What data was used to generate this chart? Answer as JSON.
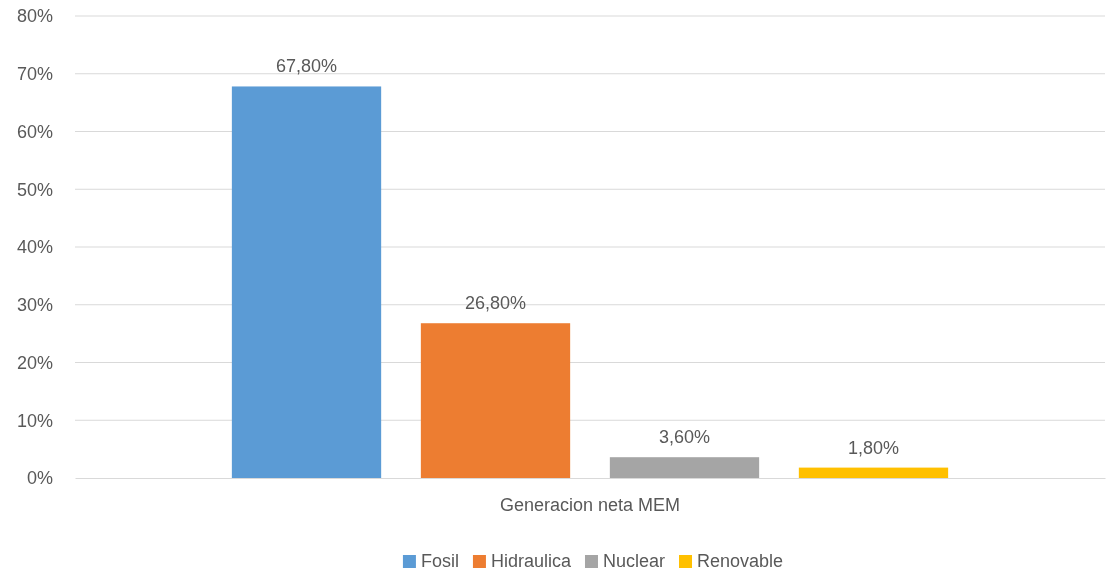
{
  "chart_data": {
    "type": "bar",
    "categories": [
      "Generacion neta MEM"
    ],
    "series": [
      {
        "name": "Fosil",
        "color": "#5b9bd5",
        "values": [
          67.8
        ],
        "value_labels": [
          "67,80%"
        ]
      },
      {
        "name": "Hidraulica",
        "color": "#ed7d31",
        "values": [
          26.8
        ],
        "value_labels": [
          "26,80%"
        ]
      },
      {
        "name": "Nuclear",
        "color": "#a5a5a5",
        "values": [
          3.6
        ],
        "value_labels": [
          "3,60%"
        ]
      },
      {
        "name": "Renovable",
        "color": "#ffc000",
        "values": [
          1.8
        ],
        "value_labels": [
          "1,80%"
        ]
      }
    ],
    "ylim": [
      0,
      80
    ],
    "yticks": [
      {
        "value": 0,
        "label": "0%"
      },
      {
        "value": 10,
        "label": "10%"
      },
      {
        "value": 20,
        "label": "20%"
      },
      {
        "value": 30,
        "label": "30%"
      },
      {
        "value": 40,
        "label": "40%"
      },
      {
        "value": 50,
        "label": "50%"
      },
      {
        "value": 60,
        "label": "60%"
      },
      {
        "value": 70,
        "label": "70%"
      },
      {
        "value": 80,
        "label": "80%"
      }
    ],
    "grid": "y",
    "legend": "bottom"
  }
}
